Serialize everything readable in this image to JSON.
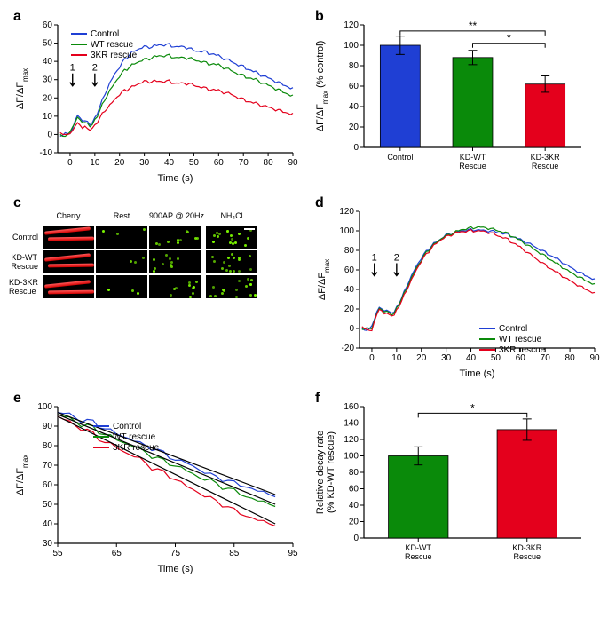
{
  "colors": {
    "control": "#1f3fd4",
    "wt": "#0a8a0a",
    "kr3": "#e4001c",
    "axis": "#000000",
    "bg": "#ffffff",
    "fitline": "#000000"
  },
  "panel_a": {
    "label": "a",
    "type": "line",
    "xlabel": "Time (s)",
    "ylabel": "ΔF/ΔF_max",
    "xlim": [
      -5,
      90
    ],
    "ylim": [
      -10,
      60
    ],
    "xticks": [
      0,
      10,
      20,
      30,
      40,
      50,
      60,
      70,
      80,
      90
    ],
    "yticks": [
      -10,
      0,
      10,
      20,
      30,
      40,
      50,
      60
    ],
    "arrows": [
      {
        "label": "1",
        "x": 1
      },
      {
        "label": "2",
        "x": 10
      }
    ],
    "legend": [
      "Control",
      "WT rescue",
      "3KR rescue"
    ],
    "series": {
      "control_pts": [
        [
          -4,
          -1
        ],
        [
          -2,
          1
        ],
        [
          0,
          0
        ],
        [
          1,
          3
        ],
        [
          2,
          8
        ],
        [
          3,
          10
        ],
        [
          4,
          9
        ],
        [
          5,
          8
        ],
        [
          6,
          7
        ],
        [
          7,
          7
        ],
        [
          8,
          6
        ],
        [
          9,
          6
        ],
        [
          10,
          9
        ],
        [
          12,
          15
        ],
        [
          14,
          22
        ],
        [
          16,
          28
        ],
        [
          18,
          33
        ],
        [
          20,
          37
        ],
        [
          22,
          41
        ],
        [
          25,
          45
        ],
        [
          28,
          47
        ],
        [
          30,
          48
        ],
        [
          33,
          48
        ],
        [
          36,
          49
        ],
        [
          40,
          49
        ],
        [
          43,
          48
        ],
        [
          46,
          48
        ],
        [
          50,
          46
        ],
        [
          55,
          45
        ],
        [
          60,
          43
        ],
        [
          65,
          40
        ],
        [
          70,
          37
        ],
        [
          75,
          34
        ],
        [
          80,
          31
        ],
        [
          85,
          28
        ],
        [
          90,
          25
        ]
      ],
      "wt_pts": [
        [
          -4,
          0
        ],
        [
          -2,
          -1
        ],
        [
          0,
          1
        ],
        [
          1,
          4
        ],
        [
          2,
          7
        ],
        [
          3,
          9
        ],
        [
          4,
          8
        ],
        [
          5,
          7
        ],
        [
          6,
          6
        ],
        [
          7,
          6
        ],
        [
          8,
          5
        ],
        [
          9,
          5
        ],
        [
          10,
          8
        ],
        [
          12,
          13
        ],
        [
          14,
          19
        ],
        [
          16,
          24
        ],
        [
          18,
          28
        ],
        [
          20,
          32
        ],
        [
          22,
          35
        ],
        [
          25,
          38
        ],
        [
          28,
          40
        ],
        [
          30,
          41
        ],
        [
          33,
          42
        ],
        [
          36,
          43
        ],
        [
          40,
          43
        ],
        [
          43,
          42
        ],
        [
          46,
          42
        ],
        [
          50,
          41
        ],
        [
          55,
          39
        ],
        [
          60,
          38
        ],
        [
          65,
          35
        ],
        [
          70,
          32
        ],
        [
          75,
          30
        ],
        [
          80,
          27
        ],
        [
          85,
          24
        ],
        [
          90,
          21
        ]
      ],
      "kr3_pts": [
        [
          -4,
          1
        ],
        [
          -2,
          0
        ],
        [
          0,
          0
        ],
        [
          1,
          2
        ],
        [
          2,
          5
        ],
        [
          3,
          6
        ],
        [
          4,
          5
        ],
        [
          5,
          4
        ],
        [
          6,
          4
        ],
        [
          7,
          3
        ],
        [
          8,
          3
        ],
        [
          9,
          3
        ],
        [
          10,
          5
        ],
        [
          12,
          9
        ],
        [
          14,
          13
        ],
        [
          16,
          16
        ],
        [
          18,
          19
        ],
        [
          20,
          22
        ],
        [
          22,
          24
        ],
        [
          25,
          26
        ],
        [
          28,
          28
        ],
        [
          30,
          29
        ],
        [
          33,
          29
        ],
        [
          36,
          29
        ],
        [
          40,
          29
        ],
        [
          43,
          28
        ],
        [
          46,
          28
        ],
        [
          50,
          27
        ],
        [
          55,
          25
        ],
        [
          60,
          24
        ],
        [
          65,
          22
        ],
        [
          70,
          19
        ],
        [
          75,
          17
        ],
        [
          80,
          15
        ],
        [
          85,
          13
        ],
        [
          90,
          11
        ]
      ]
    }
  },
  "panel_b": {
    "label": "b",
    "type": "bar",
    "ylabel": "ΔF/ΔF_max (% control)",
    "ylim": [
      0,
      120
    ],
    "yticks": [
      0,
      20,
      40,
      60,
      80,
      100,
      120
    ],
    "categories": [
      "Control",
      "KD-WT\nRescue",
      "KD-3KR\nRescue"
    ],
    "values": [
      100,
      88,
      62
    ],
    "errors": [
      9,
      7,
      8
    ],
    "bar_colors": [
      "#1f3fd4",
      "#0a8a0a",
      "#e4001c"
    ],
    "sig": [
      {
        "from": 0,
        "to": 2,
        "y": 114,
        "label": "**"
      },
      {
        "from": 1,
        "to": 2,
        "y": 102,
        "label": "*"
      }
    ]
  },
  "panel_c": {
    "label": "c",
    "col_headers": [
      "Cherry",
      "Rest",
      "900AP @ 20Hz",
      "NH₄Cl"
    ],
    "row_headers": [
      "Control",
      "KD-WT\nRescue",
      "KD-3KR\nRescue"
    ],
    "scalebar": true
  },
  "panel_d": {
    "label": "d",
    "type": "line",
    "xlabel": "Time (s)",
    "ylabel": "ΔF/ΔF_max",
    "xlim": [
      -5,
      90
    ],
    "ylim": [
      -20,
      120
    ],
    "xticks": [
      0,
      10,
      20,
      30,
      40,
      50,
      60,
      70,
      80,
      90
    ],
    "yticks": [
      -20,
      0,
      20,
      40,
      60,
      80,
      100,
      120
    ],
    "arrows": [
      {
        "label": "1",
        "x": 1
      },
      {
        "label": "2",
        "x": 10
      }
    ],
    "legend": [
      "Control",
      "WT rescue",
      "3KR rescue"
    ],
    "series": {
      "control_pts": [
        [
          -4,
          0
        ],
        [
          -2,
          -2
        ],
        [
          0,
          2
        ],
        [
          1,
          9
        ],
        [
          2,
          18
        ],
        [
          3,
          21
        ],
        [
          4,
          20
        ],
        [
          5,
          19
        ],
        [
          6,
          18
        ],
        [
          7,
          17
        ],
        [
          8,
          17
        ],
        [
          9,
          16
        ],
        [
          10,
          22
        ],
        [
          12,
          31
        ],
        [
          14,
          43
        ],
        [
          16,
          54
        ],
        [
          18,
          64
        ],
        [
          20,
          72
        ],
        [
          22,
          79
        ],
        [
          25,
          87
        ],
        [
          28,
          92
        ],
        [
          30,
          96
        ],
        [
          33,
          98
        ],
        [
          36,
          100
        ],
        [
          40,
          101
        ],
        [
          43,
          101
        ],
        [
          46,
          100
        ],
        [
          50,
          99
        ],
        [
          55,
          96
        ],
        [
          60,
          91
        ],
        [
          65,
          85
        ],
        [
          70,
          78
        ],
        [
          75,
          71
        ],
        [
          80,
          63
        ],
        [
          85,
          56
        ],
        [
          90,
          50
        ]
      ],
      "wt_pts": [
        [
          -4,
          -1
        ],
        [
          -2,
          1
        ],
        [
          0,
          -1
        ],
        [
          1,
          8
        ],
        [
          2,
          16
        ],
        [
          3,
          20
        ],
        [
          4,
          19
        ],
        [
          5,
          18
        ],
        [
          6,
          17
        ],
        [
          7,
          16
        ],
        [
          8,
          15
        ],
        [
          9,
          15
        ],
        [
          10,
          21
        ],
        [
          12,
          30
        ],
        [
          14,
          41
        ],
        [
          16,
          52
        ],
        [
          18,
          62
        ],
        [
          20,
          70
        ],
        [
          22,
          78
        ],
        [
          25,
          86
        ],
        [
          28,
          92
        ],
        [
          30,
          95
        ],
        [
          33,
          98
        ],
        [
          36,
          101
        ],
        [
          40,
          103
        ],
        [
          43,
          104
        ],
        [
          46,
          103
        ],
        [
          50,
          101
        ],
        [
          55,
          97
        ],
        [
          60,
          90
        ],
        [
          65,
          82
        ],
        [
          70,
          74
        ],
        [
          75,
          66
        ],
        [
          80,
          58
        ],
        [
          85,
          51
        ],
        [
          90,
          45
        ]
      ],
      "kr3_pts": [
        [
          -4,
          2
        ],
        [
          -2,
          -1
        ],
        [
          0,
          -3
        ],
        [
          1,
          7
        ],
        [
          2,
          15
        ],
        [
          3,
          19
        ],
        [
          4,
          18
        ],
        [
          5,
          16
        ],
        [
          6,
          15
        ],
        [
          7,
          14
        ],
        [
          8,
          14
        ],
        [
          9,
          13
        ],
        [
          10,
          19
        ],
        [
          12,
          28
        ],
        [
          14,
          39
        ],
        [
          16,
          50
        ],
        [
          18,
          60
        ],
        [
          20,
          69
        ],
        [
          22,
          76
        ],
        [
          25,
          85
        ],
        [
          28,
          91
        ],
        [
          30,
          94
        ],
        [
          33,
          97
        ],
        [
          36,
          99
        ],
        [
          40,
          100
        ],
        [
          43,
          100
        ],
        [
          46,
          99
        ],
        [
          50,
          96
        ],
        [
          55,
          91
        ],
        [
          60,
          83
        ],
        [
          65,
          74
        ],
        [
          70,
          65
        ],
        [
          75,
          57
        ],
        [
          80,
          49
        ],
        [
          85,
          42
        ],
        [
          90,
          36
        ]
      ]
    }
  },
  "panel_e": {
    "label": "e",
    "type": "line",
    "xlabel": "Time (s)",
    "ylabel": "ΔF/ΔF_max",
    "xlim": [
      55,
      95
    ],
    "ylim": [
      30,
      100
    ],
    "xticks": [
      55,
      65,
      75,
      85,
      95
    ],
    "yticks": [
      30,
      40,
      50,
      60,
      70,
      80,
      90,
      100
    ],
    "legend": [
      "Control",
      "WT rescue",
      "3KR rescue"
    ],
    "fit_lines": [
      {
        "x1": 55,
        "y1": 97,
        "x2": 92,
        "y2": 55
      },
      {
        "x1": 55,
        "y1": 96,
        "x2": 92,
        "y2": 50
      },
      {
        "x1": 55,
        "y1": 95,
        "x2": 92,
        "y2": 40
      }
    ],
    "series": {
      "control_pts": [
        [
          55,
          97
        ],
        [
          57,
          96
        ],
        [
          59,
          93
        ],
        [
          61,
          92
        ],
        [
          63,
          89
        ],
        [
          65,
          86
        ],
        [
          67,
          84
        ],
        [
          69,
          81
        ],
        [
          71,
          79
        ],
        [
          73,
          76
        ],
        [
          75,
          73
        ],
        [
          77,
          71
        ],
        [
          79,
          68
        ],
        [
          81,
          65
        ],
        [
          83,
          63
        ],
        [
          85,
          61
        ],
        [
          87,
          59
        ],
        [
          89,
          57
        ],
        [
          91,
          55
        ],
        [
          92,
          55
        ]
      ],
      "wt_pts": [
        [
          55,
          96
        ],
        [
          57,
          94
        ],
        [
          59,
          91
        ],
        [
          61,
          89
        ],
        [
          63,
          86
        ],
        [
          65,
          83
        ],
        [
          67,
          81
        ],
        [
          69,
          78
        ],
        [
          71,
          75
        ],
        [
          73,
          72
        ],
        [
          75,
          70
        ],
        [
          77,
          67
        ],
        [
          79,
          64
        ],
        [
          81,
          62
        ],
        [
          83,
          59
        ],
        [
          85,
          57
        ],
        [
          87,
          54
        ],
        [
          89,
          52
        ],
        [
          91,
          50
        ],
        [
          92,
          50
        ]
      ],
      "kr3_pts": [
        [
          55,
          95
        ],
        [
          57,
          92
        ],
        [
          59,
          89
        ],
        [
          61,
          86
        ],
        [
          63,
          82
        ],
        [
          65,
          79
        ],
        [
          67,
          76
        ],
        [
          69,
          73
        ],
        [
          71,
          69
        ],
        [
          73,
          66
        ],
        [
          75,
          63
        ],
        [
          77,
          59
        ],
        [
          79,
          56
        ],
        [
          81,
          53
        ],
        [
          83,
          50
        ],
        [
          85,
          47
        ],
        [
          87,
          44
        ],
        [
          89,
          42
        ],
        [
          91,
          40
        ],
        [
          92,
          40
        ]
      ]
    }
  },
  "panel_f": {
    "label": "f",
    "type": "bar",
    "ylabel": "Relative decay rate\n(% KD-WT rescue)",
    "ylim": [
      0,
      160
    ],
    "yticks": [
      0,
      20,
      40,
      60,
      80,
      100,
      120,
      140,
      160
    ],
    "categories": [
      "KD-WT\nRescue",
      "KD-3KR\nRescue"
    ],
    "values": [
      100,
      132
    ],
    "errors": [
      11,
      13
    ],
    "bar_colors": [
      "#0a8a0a",
      "#e4001c"
    ],
    "sig": [
      {
        "from": 0,
        "to": 1,
        "y": 152,
        "label": "*"
      }
    ]
  }
}
